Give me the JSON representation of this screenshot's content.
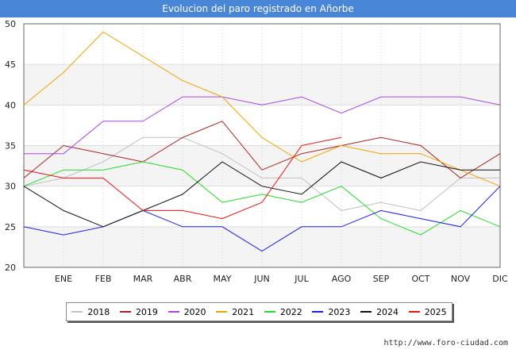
{
  "title": "Evolucion del paro registrado en Añorbe",
  "footer": "http://www.foro-ciudad.com",
  "chart_data": {
    "type": "line",
    "title": "Evolucion del paro registrado en Añorbe",
    "xlabel": "",
    "ylabel": "",
    "categories": [
      "",
      "ENE",
      "FEB",
      "MAR",
      "ABR",
      "MAY",
      "JUN",
      "JUL",
      "AGO",
      "SEP",
      "OCT",
      "NOV",
      "DIC"
    ],
    "ylim": [
      20,
      50
    ],
    "yticks": [
      20,
      25,
      30,
      35,
      40,
      45,
      50
    ],
    "grid": true,
    "legend_position": "bottom",
    "series": [
      {
        "name": "2018",
        "color": "#c0c0c0",
        "values": [
          30,
          31,
          33,
          36,
          36,
          34,
          31,
          31,
          27,
          28,
          27,
          31,
          31
        ]
      },
      {
        "name": "2019",
        "color": "#aa2222",
        "values": [
          31,
          35,
          34,
          33,
          36,
          38,
          32,
          34,
          35,
          36,
          35,
          31,
          34
        ]
      },
      {
        "name": "2020",
        "color": "#aa44ee",
        "values": [
          34,
          34,
          38,
          38,
          41,
          41,
          40,
          41,
          39,
          41,
          41,
          41,
          40
        ]
      },
      {
        "name": "2021",
        "color": "#f0a400",
        "values": [
          40,
          44,
          49,
          46,
          43,
          41,
          36,
          33,
          35,
          34,
          34,
          32,
          30
        ]
      },
      {
        "name": "2022",
        "color": "#22dd22",
        "values": [
          30,
          32,
          32,
          33,
          32,
          28,
          29,
          28,
          30,
          26,
          24,
          27,
          25
        ]
      },
      {
        "name": "2023",
        "color": "#1a1aee",
        "values": [
          25,
          24,
          25,
          27,
          25,
          25,
          22,
          25,
          25,
          27,
          26,
          25,
          30
        ]
      },
      {
        "name": "2024",
        "color": "#111111",
        "values": [
          30,
          27,
          25,
          27,
          29,
          33,
          30,
          29,
          33,
          31,
          33,
          32,
          32
        ]
      },
      {
        "name": "2025",
        "color": "#ee1111",
        "values": [
          32,
          31,
          31,
          27,
          27,
          26,
          28,
          35,
          36,
          null,
          null,
          null,
          null
        ]
      }
    ]
  }
}
